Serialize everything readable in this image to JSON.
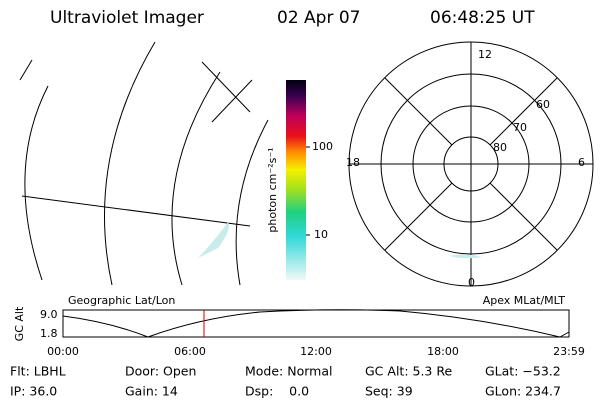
{
  "header": {
    "title": "Ultraviolet Imager",
    "date": "02 Apr 07",
    "time": "06:48:25 UT"
  },
  "colorbar": {
    "label": "photon cm⁻²s⁻¹",
    "ticks": [
      "100",
      "10"
    ]
  },
  "polar": {
    "mlt_labels": [
      "12",
      "18",
      "6",
      "0"
    ],
    "mlat_labels": [
      "60",
      "70",
      "80"
    ]
  },
  "map_label": "Geographic Lat/Lon",
  "polar_label": "Apex MLat/MLT",
  "orbit": {
    "ylabel": "GC Alt",
    "yticks": [
      "9.0",
      "1.8"
    ],
    "xticks": [
      "00:00",
      "06:00",
      "12:00",
      "18:00",
      "23:59"
    ]
  },
  "info": [
    [
      "Flt: LBHL",
      "Door: Open",
      "Mode: Normal",
      "GC Alt: 5.3 Re",
      "GLat: −53.2"
    ],
    [
      "IP: 36.0",
      "Gain: 14",
      "Dsp:    0.0",
      "Seq: 39",
      "GLon: 234.7"
    ]
  ]
}
